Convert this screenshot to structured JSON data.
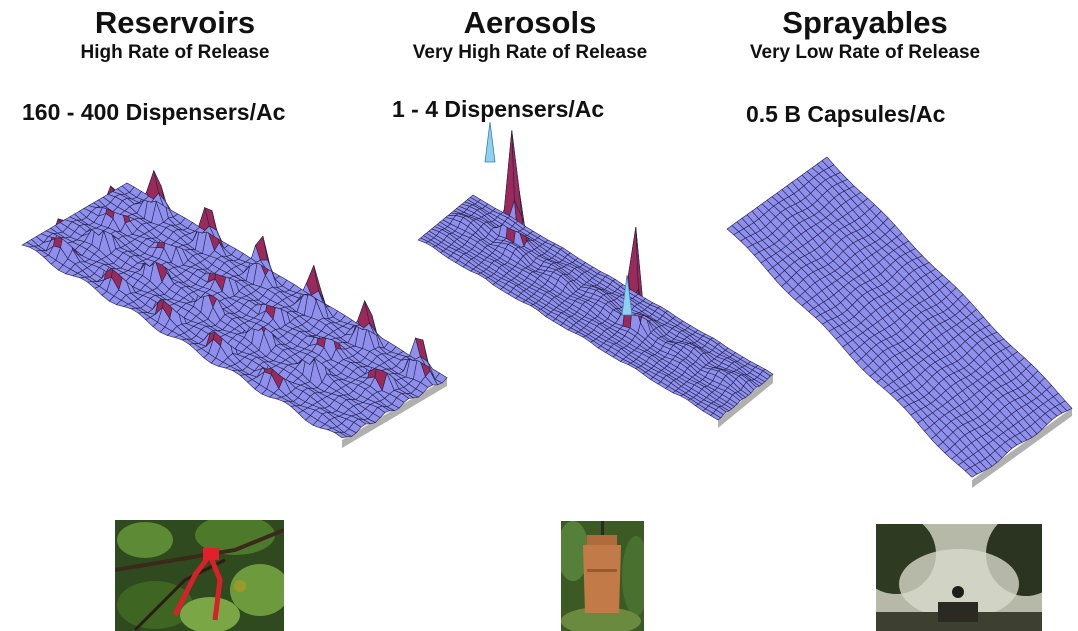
{
  "columns": [
    {
      "title": "Reservoirs",
      "subtitle": "High Rate of Release",
      "density": "160 - 400 Dispensers/Ac",
      "photo_icon": "reservoir-dispenser-photo"
    },
    {
      "title": "Aerosols",
      "subtitle": "Very High Rate of Release",
      "density": "1 - 4 Dispensers/Ac",
      "photo_icon": "aerosol-dispenser-photo"
    },
    {
      "title": "Sprayables",
      "subtitle": "Very Low Rate of Release",
      "density": "0.5 B Capsules/Ac",
      "photo_icon": "sprayer-photo"
    }
  ],
  "colors": {
    "surface": "#8f8fee",
    "grid_line": "#23234a",
    "peak": "#9b2a5a",
    "peak_high": "#f3ee9e",
    "peak_tip": "#8fd0ee",
    "shadow": "#9a9a9a"
  }
}
